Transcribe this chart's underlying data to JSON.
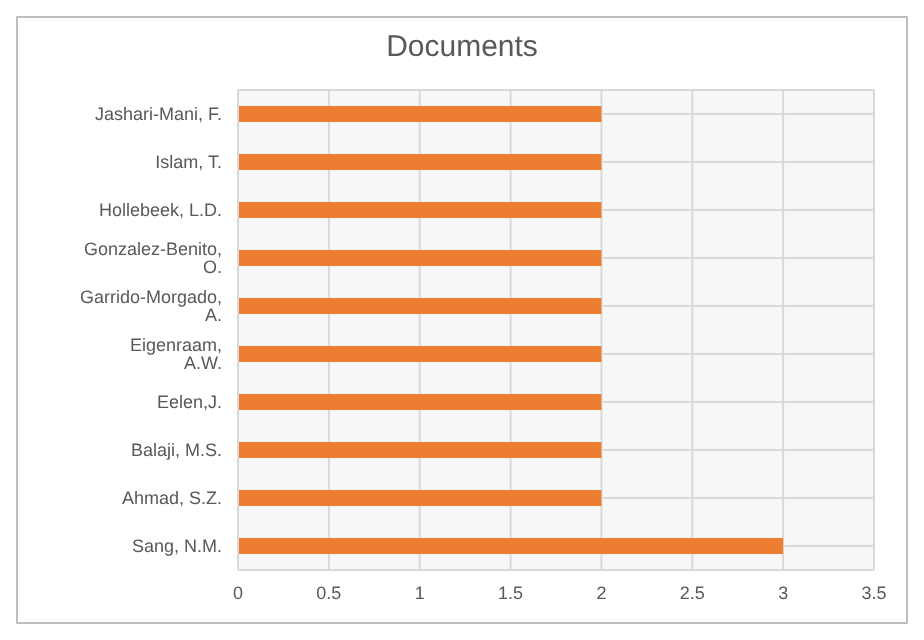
{
  "chart_data": {
    "type": "bar",
    "orientation": "horizontal",
    "title": "Documents",
    "categories": [
      "Jashari-Mani, F.",
      "Islam, T.",
      "Hollebeek, L.D.",
      "Gonzalez-Benito, O.",
      "Garrido-Morgado, A.",
      "Eigenraam, A.W.",
      "Eelen,J.",
      "Balaji, M.S.",
      "Ahmad, S.Z.",
      "Sang, N.M."
    ],
    "values": [
      2,
      2,
      2,
      2,
      2,
      2,
      2,
      2,
      2,
      3
    ],
    "color": "#ed7d31",
    "xlim": [
      0,
      3.5
    ],
    "xticks": [
      0,
      0.5,
      1,
      1.5,
      2,
      2.5,
      3,
      3.5
    ],
    "grid": true
  }
}
